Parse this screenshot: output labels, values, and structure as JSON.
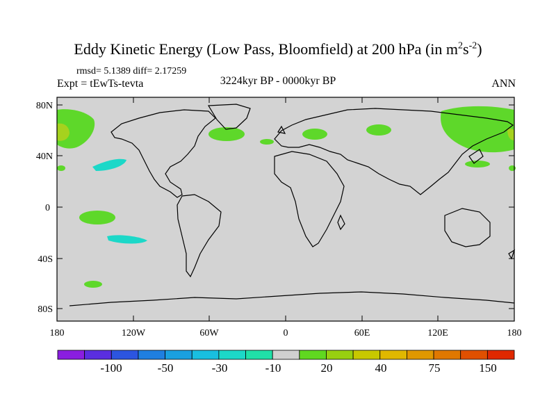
{
  "title_main": "Eddy Kinetic Energy (Low Pass, Bloomfield) at 200 hPa (in m",
  "title_sup1": "2",
  "title_mid": "s",
  "title_sup2": "-2",
  "title_end": ")",
  "stats": "rmsd= 5.1389 diff= 2.17259",
  "expt": "Expt = tEwTs-tevta",
  "period": "3224kyr BP - 0000kyr BP",
  "season": "ANN",
  "lat_labels": [
    "80N",
    "40N",
    "0",
    "40S",
    "80S"
  ],
  "lon_labels": [
    "180",
    "120W",
    "60W",
    "0",
    "60E",
    "120E",
    "180"
  ],
  "colorbar": {
    "colors": [
      "#8a1ee0",
      "#5a2ee0",
      "#2c55e0",
      "#1f7fe0",
      "#1aa0e0",
      "#19bfe0",
      "#1cd8c8",
      "#20e0a8",
      "#d0d0d0",
      "#60d820",
      "#98d010",
      "#c8c800",
      "#e0b800",
      "#e09800",
      "#e07800",
      "#e05000",
      "#e02800"
    ],
    "labels": [
      "-100",
      "-50",
      "-30",
      "-10",
      "20",
      "40",
      "75",
      "150"
    ]
  }
}
